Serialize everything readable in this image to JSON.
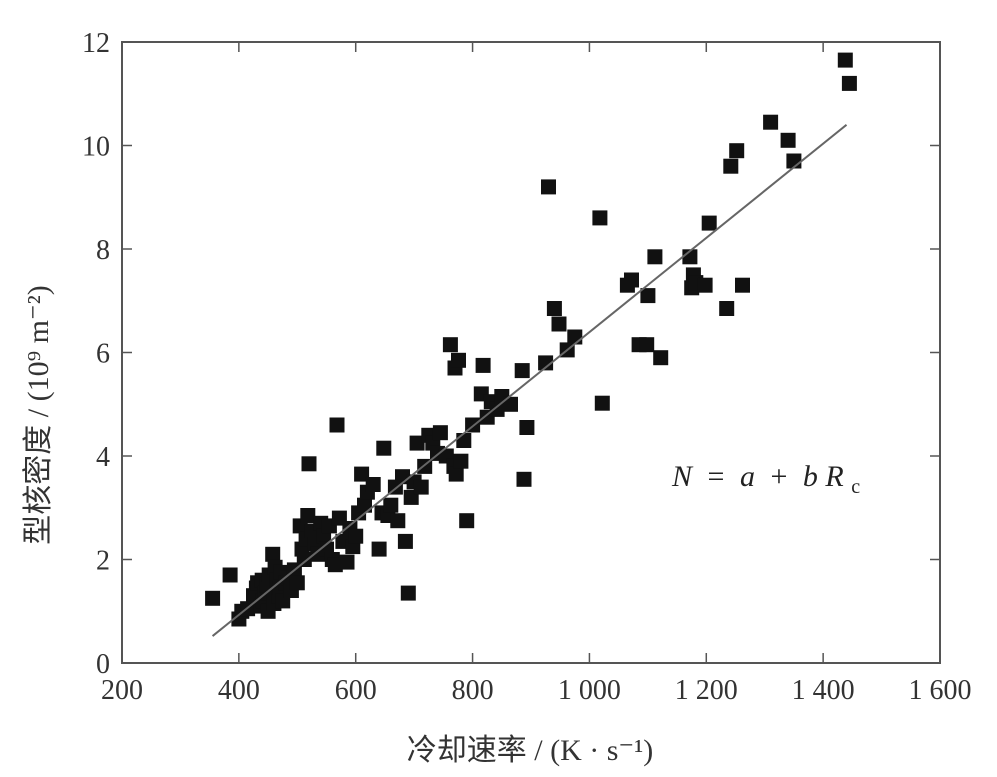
{
  "chart_data": {
    "type": "scatter",
    "xlabel": "冷却速率 / (K · s⁻¹)",
    "ylabel": "型核密度 / (10⁹ m⁻²)",
    "xlim": [
      200,
      1600
    ],
    "ylim": [
      0,
      12
    ],
    "x_ticks": [
      200,
      400,
      600,
      800,
      1000,
      1200,
      1400,
      1600
    ],
    "y_ticks": [
      0,
      2,
      4,
      6,
      8,
      10,
      12
    ],
    "x_tick_labels": [
      "200",
      "400",
      "600",
      "800",
      "1 000",
      "1 200",
      "1 400",
      "1 600"
    ],
    "y_tick_labels": [
      "0",
      "2",
      "4",
      "6",
      "8",
      "10",
      "12"
    ],
    "annotation": {
      "N": "N",
      "eq": "=",
      "a": "a",
      "plus": "+",
      "b": "b",
      "R": "R",
      "sub": "c"
    },
    "legend": "none",
    "grid": false,
    "fit_line": {
      "x": [
        355,
        1440
      ],
      "y": [
        0.52,
        10.4
      ]
    },
    "series": [
      {
        "marker": "square",
        "color": "#111111",
        "points": [
          [
            355,
            1.25
          ],
          [
            385,
            1.7
          ],
          [
            400,
            0.85
          ],
          [
            405,
            1.0
          ],
          [
            415,
            1.05
          ],
          [
            425,
            1.3
          ],
          [
            430,
            1.45
          ],
          [
            432,
            1.55
          ],
          [
            438,
            1.1
          ],
          [
            440,
            1.6
          ],
          [
            442,
            1.2
          ],
          [
            445,
            1.35
          ],
          [
            448,
            1.5
          ],
          [
            450,
            1.0
          ],
          [
            452,
            1.7
          ],
          [
            455,
            1.4
          ],
          [
            458,
            2.1
          ],
          [
            460,
            1.15
          ],
          [
            462,
            1.85
          ],
          [
            465,
            1.6
          ],
          [
            468,
            1.3
          ],
          [
            470,
            1.45
          ],
          [
            472,
            1.75
          ],
          [
            475,
            1.2
          ],
          [
            480,
            1.55
          ],
          [
            485,
            1.65
          ],
          [
            490,
            1.4
          ],
          [
            495,
            1.8
          ],
          [
            500,
            1.55
          ],
          [
            505,
            2.65
          ],
          [
            508,
            2.2
          ],
          [
            512,
            2.0
          ],
          [
            515,
            2.4
          ],
          [
            518,
            2.85
          ],
          [
            520,
            3.85
          ],
          [
            525,
            2.55
          ],
          [
            530,
            2.3
          ],
          [
            535,
            2.1
          ],
          [
            540,
            2.7
          ],
          [
            545,
            2.45
          ],
          [
            550,
            2.2
          ],
          [
            555,
            2.65
          ],
          [
            560,
            2.0
          ],
          [
            565,
            1.9
          ],
          [
            568,
            4.6
          ],
          [
            572,
            2.8
          ],
          [
            578,
            2.35
          ],
          [
            585,
            1.95
          ],
          [
            590,
            2.6
          ],
          [
            595,
            2.25
          ],
          [
            600,
            2.45
          ],
          [
            605,
            2.9
          ],
          [
            610,
            3.65
          ],
          [
            615,
            3.05
          ],
          [
            620,
            3.3
          ],
          [
            630,
            3.45
          ],
          [
            640,
            2.2
          ],
          [
            645,
            2.9
          ],
          [
            648,
            4.15
          ],
          [
            655,
            2.85
          ],
          [
            660,
            3.05
          ],
          [
            668,
            3.4
          ],
          [
            672,
            2.75
          ],
          [
            680,
            3.6
          ],
          [
            685,
            2.35
          ],
          [
            690,
            1.35
          ],
          [
            695,
            3.2
          ],
          [
            700,
            3.5
          ],
          [
            705,
            4.25
          ],
          [
            712,
            3.4
          ],
          [
            718,
            3.8
          ],
          [
            725,
            4.4
          ],
          [
            732,
            4.25
          ],
          [
            740,
            4.05
          ],
          [
            745,
            4.45
          ],
          [
            755,
            4.0
          ],
          [
            762,
            6.15
          ],
          [
            768,
            3.8
          ],
          [
            770,
            5.7
          ],
          [
            772,
            3.65
          ],
          [
            776,
            5.85
          ],
          [
            780,
            3.9
          ],
          [
            785,
            4.3
          ],
          [
            790,
            2.75
          ],
          [
            800,
            4.6
          ],
          [
            815,
            5.2
          ],
          [
            818,
            5.75
          ],
          [
            825,
            4.75
          ],
          [
            832,
            5.05
          ],
          [
            842,
            4.9
          ],
          [
            850,
            5.15
          ],
          [
            865,
            5.0
          ],
          [
            885,
            5.65
          ],
          [
            888,
            3.55
          ],
          [
            893,
            4.55
          ],
          [
            925,
            5.8
          ],
          [
            930,
            9.2
          ],
          [
            940,
            6.85
          ],
          [
            948,
            6.55
          ],
          [
            962,
            6.05
          ],
          [
            975,
            6.3
          ],
          [
            1018,
            8.6
          ],
          [
            1022,
            5.02
          ],
          [
            1065,
            7.3
          ],
          [
            1072,
            7.4
          ],
          [
            1085,
            6.15
          ],
          [
            1098,
            6.15
          ],
          [
            1100,
            7.1
          ],
          [
            1112,
            7.85
          ],
          [
            1122,
            5.9
          ],
          [
            1172,
            7.85
          ],
          [
            1175,
            7.25
          ],
          [
            1178,
            7.5
          ],
          [
            1182,
            7.35
          ],
          [
            1198,
            7.3
          ],
          [
            1205,
            8.5
          ],
          [
            1235,
            6.85
          ],
          [
            1242,
            9.6
          ],
          [
            1252,
            9.9
          ],
          [
            1262,
            7.3
          ],
          [
            1310,
            10.45
          ],
          [
            1340,
            10.1
          ],
          [
            1350,
            9.7
          ],
          [
            1438,
            11.65
          ],
          [
            1445,
            11.2
          ]
        ]
      }
    ]
  }
}
